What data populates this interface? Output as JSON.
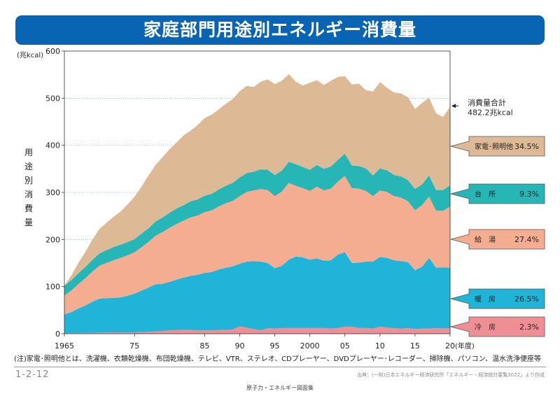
{
  "header": {
    "title": "家庭部門用途別エネルギー消費量"
  },
  "axis": {
    "unit": "(兆kcal)",
    "ylabel_chars": [
      "用",
      "途",
      "別",
      "消",
      "費",
      "量"
    ],
    "x_suffix": "(年度)"
  },
  "note": "(注)家電･照明他とは、洗濯機、衣類乾燥機、布団乾燥機、テレビ、VTR、ステレオ、CDプレーヤー、DVDプレーヤー･レコーダー、掃除機、パソコン、温水洗浄便座等",
  "figure_number": "1-2-12",
  "source": "出典：(一財)日本エネルギー経済研究所「エネルギー・経済統計要覧2022」より作成",
  "footer": "原子力・エネルギー図面集",
  "chart_data": {
    "type": "area",
    "stacked": true,
    "title": "家庭部門用途別エネルギー消費量",
    "xlabel": "(年度)",
    "ylabel": "用途別消費量",
    "ylim": [
      0,
      600
    ],
    "yticks": [
      0,
      100,
      200,
      300,
      400,
      500,
      600
    ],
    "xlim": [
      1965,
      2020
    ],
    "xticks": [
      {
        "value": 1965,
        "label": "1965"
      },
      {
        "value": 1975,
        "label": "75"
      },
      {
        "value": 1985,
        "label": "85"
      },
      {
        "value": 1990,
        "label": "90"
      },
      {
        "value": 1995,
        "label": "95"
      },
      {
        "value": 2000,
        "label": "2000"
      },
      {
        "value": 2005,
        "label": "05"
      },
      {
        "value": 2010,
        "label": "10"
      },
      {
        "value": 2015,
        "label": "15"
      },
      {
        "value": 2020,
        "label": "20"
      }
    ],
    "x": [
      1965,
      1966,
      1967,
      1968,
      1969,
      1970,
      1971,
      1972,
      1973,
      1974,
      1975,
      1976,
      1977,
      1978,
      1979,
      1980,
      1981,
      1982,
      1983,
      1984,
      1985,
      1986,
      1987,
      1988,
      1989,
      1990,
      1991,
      1992,
      1993,
      1994,
      1995,
      1996,
      1997,
      1998,
      1999,
      2000,
      2001,
      2002,
      2003,
      2004,
      2005,
      2006,
      2007,
      2008,
      2009,
      2010,
      2011,
      2012,
      2013,
      2014,
      2015,
      2016,
      2017,
      2018,
      2019,
      2020
    ],
    "series": [
      {
        "name": "冷房",
        "color": "#ef8f95",
        "values": [
          1,
          1,
          1.5,
          2,
          2,
          2.5,
          2.5,
          3,
          3,
          2.5,
          3,
          3.5,
          4,
          5,
          6,
          7,
          8,
          8,
          8,
          7,
          7,
          7,
          8,
          8,
          9,
          16,
          13,
          10,
          7,
          12,
          11,
          12,
          12,
          12,
          12,
          12,
          12,
          12,
          11,
          12,
          15,
          15,
          12,
          12,
          11,
          15,
          13,
          12,
          11,
          12,
          10,
          11,
          11,
          12,
          11,
          12
        ]
      },
      {
        "name": "暖房",
        "color": "#1fb4d8",
        "values": [
          40,
          45,
          52,
          58,
          66,
          72,
          73,
          73,
          74,
          78,
          82,
          88,
          94,
          100,
          100,
          103,
          107,
          111,
          115,
          118,
          122,
          124,
          128,
          132,
          134,
          133,
          140,
          144,
          146,
          138,
          128,
          132,
          145,
          152,
          150,
          145,
          148,
          143,
          145,
          156,
          158,
          135,
          139,
          141,
          142,
          148,
          148,
          144,
          143,
          140,
          125,
          131,
          150,
          128,
          130,
          128
        ]
      },
      {
        "name": "給湯",
        "color": "#f4ad90",
        "values": [
          40,
          46,
          52,
          58,
          64,
          70,
          75,
          80,
          84,
          86,
          88,
          92,
          97,
          103,
          110,
          115,
          118,
          121,
          124,
          126,
          129,
          131,
          134,
          137,
          139,
          143,
          148,
          150,
          154,
          155,
          153,
          158,
          163,
          150,
          147,
          146,
          152,
          149,
          152,
          155,
          162,
          159,
          157,
          150,
          139,
          141,
          140,
          136,
          135,
          129,
          127,
          131,
          130,
          121,
          120,
          130
        ]
      },
      {
        "name": "台所",
        "color": "#27b6b6",
        "values": [
          21,
          22,
          23,
          24,
          25,
          26,
          27,
          28,
          28,
          28,
          28,
          29,
          29,
          30,
          31,
          32,
          33,
          33,
          34,
          34,
          35,
          35,
          36,
          37,
          38,
          40,
          40,
          40,
          42,
          43,
          45,
          44,
          45,
          46,
          45,
          45,
          46,
          46,
          47,
          46,
          47,
          48,
          48,
          48,
          44,
          47,
          46,
          45,
          45,
          45,
          45,
          44,
          45,
          44,
          44,
          45
        ]
      },
      {
        "name": "家電・照明他",
        "color": "#deb996",
        "values": [
          0,
          10,
          22,
          32,
          43,
          52,
          58,
          64,
          70,
          80,
          90,
          100,
          112,
          120,
          128,
          135,
          140,
          148,
          150,
          158,
          165,
          168,
          170,
          174,
          178,
          183,
          185,
          180,
          186,
          192,
          193,
          191,
          186,
          175,
          173,
          185,
          180,
          178,
          182,
          176,
          165,
          172,
          175,
          166,
          178,
          183,
          175,
          175,
          176,
          176,
          170,
          173,
          165,
          163,
          155,
          167
        ]
      }
    ],
    "total": {
      "label_line1": "消費量合計",
      "label_line2": "482.2兆kcal",
      "value": 482.2
    },
    "legend": [
      {
        "name": "家電･照明他",
        "value": "34.5%",
        "color": "#deb996"
      },
      {
        "name": "台　所",
        "value": "9.3%",
        "color": "#27b6b6"
      },
      {
        "name": "給　湯",
        "value": "27.4%",
        "color": "#f4ad90"
      },
      {
        "name": "暖　房",
        "value": "26.5%",
        "color": "#1fb4d8"
      },
      {
        "name": "冷　房",
        "value": "2.3%",
        "color": "#ef8f95"
      }
    ]
  }
}
